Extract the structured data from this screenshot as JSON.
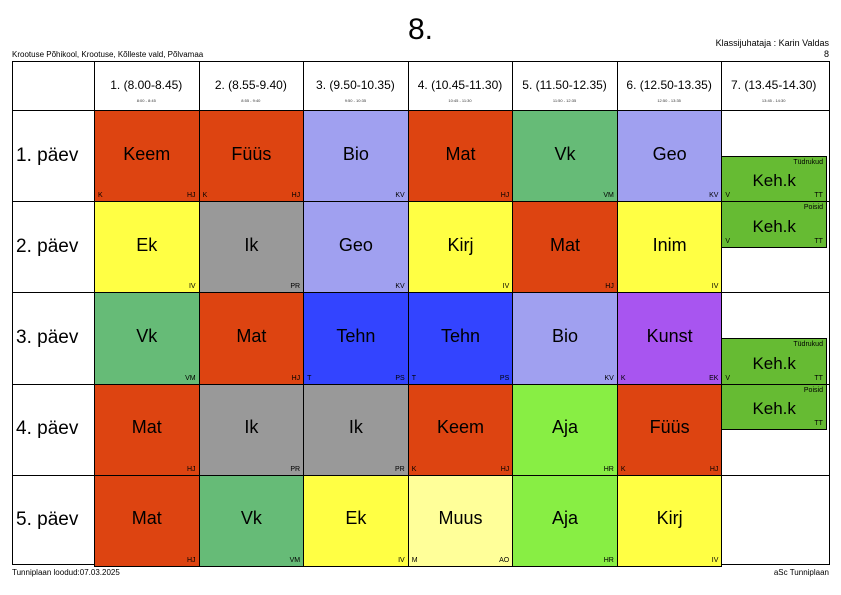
{
  "title": "8.",
  "school": "Krootuse Põhikool, Krootuse, Kõlleste vald, Põlvamaa",
  "teacher": "Klassijuhataja : Karin Valdas",
  "teacher_sub": "8",
  "footer_left": "Tunniplaan loodud:07.03.2025",
  "footer_right": "aSc Tunniplaan",
  "periods": [
    {
      "label": "1. (8.00-8.45)",
      "sub": "8:00 - 8:45"
    },
    {
      "label": "2. (8.55-9.40)",
      "sub": "8:55 - 9:40"
    },
    {
      "label": "3. (9.50-10.35)",
      "sub": "9:50 - 10:35"
    },
    {
      "label": "4. (10.45-11.30)",
      "sub": "10:45 - 11:30"
    },
    {
      "label": "5. (11.50-12.35)",
      "sub": "11:50 - 12:35"
    },
    {
      "label": "6. (12.50-13.35)",
      "sub": "12:50 - 13:35"
    },
    {
      "label": "7. (13.45-14.30)",
      "sub": "13:45 - 14:30"
    }
  ],
  "days": [
    "1. päev",
    "2. päev",
    "3. päev",
    "4. päev",
    "5. päev"
  ],
  "colors": {
    "orange": "#dd4411",
    "lavender": "#a0a0f0",
    "green": "#66bb77",
    "yellow": "#ffff44",
    "gray": "#999999",
    "blue": "#3344ff",
    "purple": "#a855f0",
    "lime": "#88ee44",
    "pale": "#ffff99",
    "sport": "#66bb33"
  },
  "lessons": [
    {
      "day": 0,
      "period": 0,
      "subject": "Keem",
      "color": "orange",
      "bl": "K",
      "br": "HJ"
    },
    {
      "day": 0,
      "period": 1,
      "subject": "Füüs",
      "color": "orange",
      "bl": "K",
      "br": "HJ"
    },
    {
      "day": 0,
      "period": 2,
      "subject": "Bio",
      "color": "lavender",
      "br": "KV"
    },
    {
      "day": 0,
      "period": 3,
      "subject": "Mat",
      "color": "orange",
      "br": "HJ"
    },
    {
      "day": 0,
      "period": 4,
      "subject": "Vk",
      "color": "green",
      "br": "VM"
    },
    {
      "day": 0,
      "period": 5,
      "subject": "Geo",
      "color": "lavender",
      "br": "KV"
    },
    {
      "day": 0,
      "period": 6,
      "half": "bottom",
      "subject": "Keh.k",
      "color": "sport",
      "tr": "Tüdrukud",
      "bl": "V",
      "br": "TT"
    },
    {
      "day": 1,
      "period": 0,
      "subject": "Ek",
      "color": "yellow",
      "br": "IV"
    },
    {
      "day": 1,
      "period": 1,
      "subject": "Ik",
      "color": "gray",
      "br": "PR"
    },
    {
      "day": 1,
      "period": 2,
      "subject": "Geo",
      "color": "lavender",
      "br": "KV"
    },
    {
      "day": 1,
      "period": 3,
      "subject": "Kirj",
      "color": "yellow",
      "br": "IV"
    },
    {
      "day": 1,
      "period": 4,
      "subject": "Mat",
      "color": "orange",
      "br": "HJ"
    },
    {
      "day": 1,
      "period": 5,
      "subject": "Inim",
      "color": "yellow",
      "br": "IV"
    },
    {
      "day": 1,
      "period": 6,
      "half": "top",
      "subject": "Keh.k",
      "color": "sport",
      "tr": "Poisid",
      "bl": "V",
      "br": "TT"
    },
    {
      "day": 2,
      "period": 0,
      "subject": "Vk",
      "color": "green",
      "br": "VM"
    },
    {
      "day": 2,
      "period": 1,
      "subject": "Mat",
      "color": "orange",
      "br": "HJ"
    },
    {
      "day": 2,
      "period": 2,
      "subject": "Tehn",
      "color": "blue",
      "bl": "T",
      "br": "PS"
    },
    {
      "day": 2,
      "period": 3,
      "subject": "Tehn",
      "color": "blue",
      "bl": "T",
      "br": "PS"
    },
    {
      "day": 2,
      "period": 4,
      "subject": "Bio",
      "color": "lavender",
      "br": "KV"
    },
    {
      "day": 2,
      "period": 5,
      "subject": "Kunst",
      "color": "purple",
      "bl": "K",
      "br": "EK"
    },
    {
      "day": 2,
      "period": 6,
      "half": "bottom",
      "subject": "Keh.k",
      "color": "sport",
      "tr": "Tüdrukud",
      "bl": "V",
      "br": "TT"
    },
    {
      "day": 3,
      "period": 0,
      "subject": "Mat",
      "color": "orange",
      "br": "HJ"
    },
    {
      "day": 3,
      "period": 1,
      "subject": "Ik",
      "color": "gray",
      "br": "PR"
    },
    {
      "day": 3,
      "period": 2,
      "subject": "Ik",
      "color": "gray",
      "br": "PR"
    },
    {
      "day": 3,
      "period": 3,
      "subject": "Keem",
      "color": "orange",
      "bl": "K",
      "br": "HJ"
    },
    {
      "day": 3,
      "period": 4,
      "subject": "Aja",
      "color": "lime",
      "br": "HR"
    },
    {
      "day": 3,
      "period": 5,
      "subject": "Füüs",
      "color": "orange",
      "bl": "K",
      "br": "HJ"
    },
    {
      "day": 3,
      "period": 6,
      "half": "top",
      "subject": "Keh.k",
      "color": "sport",
      "tr": "Poisid",
      "br": "TT"
    },
    {
      "day": 4,
      "period": 0,
      "subject": "Mat",
      "color": "orange",
      "br": "HJ"
    },
    {
      "day": 4,
      "period": 1,
      "subject": "Vk",
      "color": "green",
      "br": "VM"
    },
    {
      "day": 4,
      "period": 2,
      "subject": "Ek",
      "color": "yellow",
      "br": "IV"
    },
    {
      "day": 4,
      "period": 3,
      "subject": "Muus",
      "color": "pale",
      "bl": "M",
      "br": "AO"
    },
    {
      "day": 4,
      "period": 4,
      "subject": "Aja",
      "color": "lime",
      "br": "HR"
    },
    {
      "day": 4,
      "period": 5,
      "subject": "Kirj",
      "color": "yellow",
      "br": "IV"
    }
  ]
}
